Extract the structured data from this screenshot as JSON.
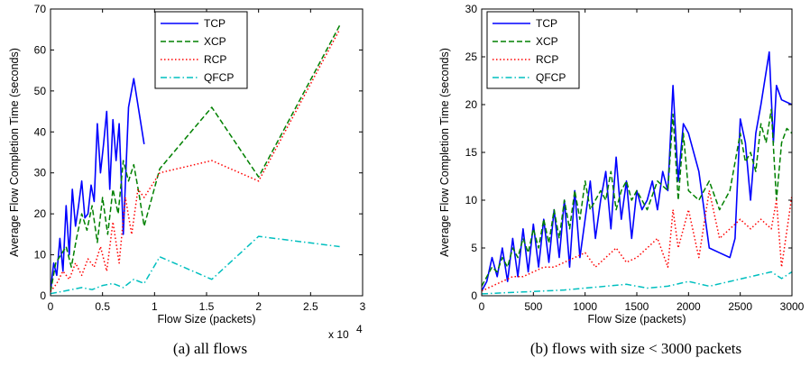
{
  "chart_data": [
    {
      "type": "line",
      "caption": "(a) all flows",
      "xlabel": "Flow Size (packets)",
      "ylabel": "Average Flow Completion Time (seconds)",
      "xlim": [
        0,
        30000
      ],
      "ylim": [
        0,
        70
      ],
      "x_ticks": [
        0,
        0.5,
        1,
        1.5,
        2,
        2.5,
        3
      ],
      "y_ticks": [
        0,
        10,
        20,
        30,
        40,
        50,
        60,
        70
      ],
      "x_exponent_label": "x 10",
      "x_exponent_power": "4",
      "grid": false,
      "legend_position": "top-center",
      "series": [
        {
          "name": "TCP",
          "color": "#0000ff",
          "dash": "solid",
          "x": [
            0,
            300,
            600,
            900,
            1200,
            1500,
            1800,
            2100,
            2400,
            2700,
            3000,
            3300,
            3600,
            3900,
            4200,
            4500,
            4800,
            5100,
            5400,
            5700,
            6000,
            6300,
            6600,
            7000,
            7500,
            8000,
            9000
          ],
          "y": [
            1,
            8,
            5,
            14,
            6,
            22,
            10,
            26,
            17,
            22,
            28,
            19,
            20,
            27,
            23,
            42,
            30,
            37,
            45,
            26,
            43,
            33,
            42,
            15,
            46,
            53,
            37
          ]
        },
        {
          "name": "XCP",
          "color": "#008000",
          "dash": "dashed",
          "x": [
            0,
            500,
            1000,
            1500,
            2000,
            2500,
            3000,
            3500,
            4000,
            4500,
            5000,
            5500,
            6000,
            6500,
            7000,
            7500,
            8000,
            8500,
            9000,
            10500,
            15500,
            20000,
            27800
          ],
          "y": [
            1,
            8,
            10,
            12,
            7,
            14,
            20,
            16,
            22,
            13,
            24,
            15,
            26,
            20,
            33,
            28,
            32,
            25,
            17,
            31,
            46,
            29,
            66
          ]
        },
        {
          "name": "RCP",
          "color": "#ff0000",
          "dash": "dotted",
          "x": [
            0,
            600,
            1200,
            1800,
            2400,
            3000,
            3600,
            4200,
            4800,
            5400,
            6000,
            6600,
            7200,
            7800,
            8400,
            9000,
            10500,
            15500,
            20000,
            27800
          ],
          "y": [
            1,
            3,
            6,
            4,
            8,
            5,
            9,
            7,
            12,
            6,
            18,
            8,
            24,
            15,
            26,
            24,
            30,
            33,
            28,
            65
          ]
        },
        {
          "name": "QFCP",
          "color": "#00bfbf",
          "dash": "dashdot",
          "x": [
            0,
            1000,
            2000,
            3000,
            4000,
            5000,
            6000,
            7000,
            8000,
            9000,
            10500,
            15500,
            20000,
            27800
          ],
          "y": [
            0.5,
            1,
            1.5,
            2,
            1.5,
            2.5,
            3,
            2,
            4,
            3,
            9.5,
            4,
            14.5,
            12
          ]
        }
      ]
    },
    {
      "type": "line",
      "caption": "(b) flows with size < 3000 packets",
      "xlabel": "Flow Size (packets)",
      "ylabel": "Average Flow Completion Time (seconds)",
      "xlim": [
        0,
        3000
      ],
      "ylim": [
        0,
        30
      ],
      "x_ticks": [
        0,
        500,
        1000,
        1500,
        2000,
        2500,
        3000
      ],
      "y_ticks": [
        0,
        5,
        10,
        15,
        20,
        25,
        30
      ],
      "grid": false,
      "legend_position": "top-left",
      "series": [
        {
          "name": "TCP",
          "color": "#0000ff",
          "dash": "solid",
          "x": [
            0,
            50,
            100,
            150,
            200,
            250,
            300,
            350,
            400,
            450,
            500,
            550,
            600,
            650,
            700,
            750,
            800,
            850,
            900,
            950,
            1000,
            1050,
            1100,
            1150,
            1200,
            1250,
            1300,
            1350,
            1400,
            1450,
            1500,
            1550,
            1600,
            1650,
            1700,
            1750,
            1800,
            1850,
            1900,
            1950,
            2000,
            2100,
            2200,
            2300,
            2400,
            2450,
            2500,
            2550,
            2600,
            2650,
            2700,
            2780,
            2820,
            2850,
            2900,
            3000
          ],
          "y": [
            0.5,
            1.5,
            4,
            2,
            5,
            1.5,
            6,
            2,
            7,
            2.5,
            7.5,
            3,
            8,
            3.5,
            9,
            4,
            10,
            3,
            11,
            4,
            8,
            12,
            6,
            10,
            13,
            7,
            14.5,
            8,
            12,
            6,
            11,
            9,
            10,
            12,
            9,
            13,
            11,
            22,
            12,
            18,
            17,
            13,
            5,
            4.5,
            4,
            6,
            18.5,
            16,
            10,
            17,
            20,
            25.5,
            16,
            22,
            20.5,
            20
          ]
        },
        {
          "name": "XCP",
          "color": "#008000",
          "dash": "dashed",
          "x": [
            0,
            50,
            100,
            150,
            200,
            250,
            300,
            350,
            400,
            450,
            500,
            550,
            600,
            650,
            700,
            750,
            800,
            850,
            900,
            950,
            1000,
            1050,
            1100,
            1150,
            1200,
            1250,
            1300,
            1350,
            1400,
            1450,
            1500,
            1600,
            1700,
            1800,
            1850,
            1900,
            1950,
            2000,
            2100,
            2200,
            2300,
            2400,
            2500,
            2550,
            2600,
            2650,
            2700,
            2750,
            2800,
            2850,
            2900,
            2950,
            3000
          ],
          "y": [
            1,
            2,
            3,
            2.5,
            4,
            3,
            5,
            4,
            6,
            4.5,
            7,
            5,
            8,
            5.5,
            9,
            6,
            10,
            7,
            11,
            8,
            12,
            9,
            10,
            11,
            10,
            13,
            9,
            11,
            12,
            10,
            11,
            9,
            12,
            11,
            19,
            10,
            17,
            11,
            10,
            12,
            9,
            11,
            17,
            14,
            15,
            13,
            18,
            16,
            19.5,
            10,
            16,
            17.5,
            17
          ]
        },
        {
          "name": "RCP",
          "color": "#ff0000",
          "dash": "dotted",
          "x": [
            0,
            100,
            200,
            300,
            400,
            500,
            600,
            700,
            800,
            900,
            1000,
            1100,
            1200,
            1300,
            1400,
            1500,
            1600,
            1700,
            1800,
            1850,
            1900,
            2000,
            2100,
            2200,
            2300,
            2400,
            2500,
            2600,
            2700,
            2800,
            2850,
            2900,
            3000
          ],
          "y": [
            0.5,
            1,
            1.5,
            2,
            2,
            2.5,
            3,
            3,
            3.5,
            4,
            4.5,
            3,
            4,
            5,
            3.5,
            4,
            5,
            6,
            3,
            9,
            5,
            9,
            4,
            11,
            6,
            7,
            8,
            7,
            8,
            7,
            10,
            3,
            10.5
          ]
        },
        {
          "name": "QFCP",
          "color": "#00bfbf",
          "dash": "dashdot",
          "x": [
            0,
            200,
            400,
            600,
            800,
            1000,
            1200,
            1400,
            1600,
            1800,
            2000,
            2200,
            2400,
            2600,
            2800,
            2900,
            3000
          ],
          "y": [
            0.2,
            0.3,
            0.4,
            0.5,
            0.6,
            0.8,
            1,
            1.2,
            0.8,
            1,
            1.5,
            1,
            1.5,
            2,
            2.5,
            1.8,
            2.5
          ]
        }
      ]
    }
  ]
}
